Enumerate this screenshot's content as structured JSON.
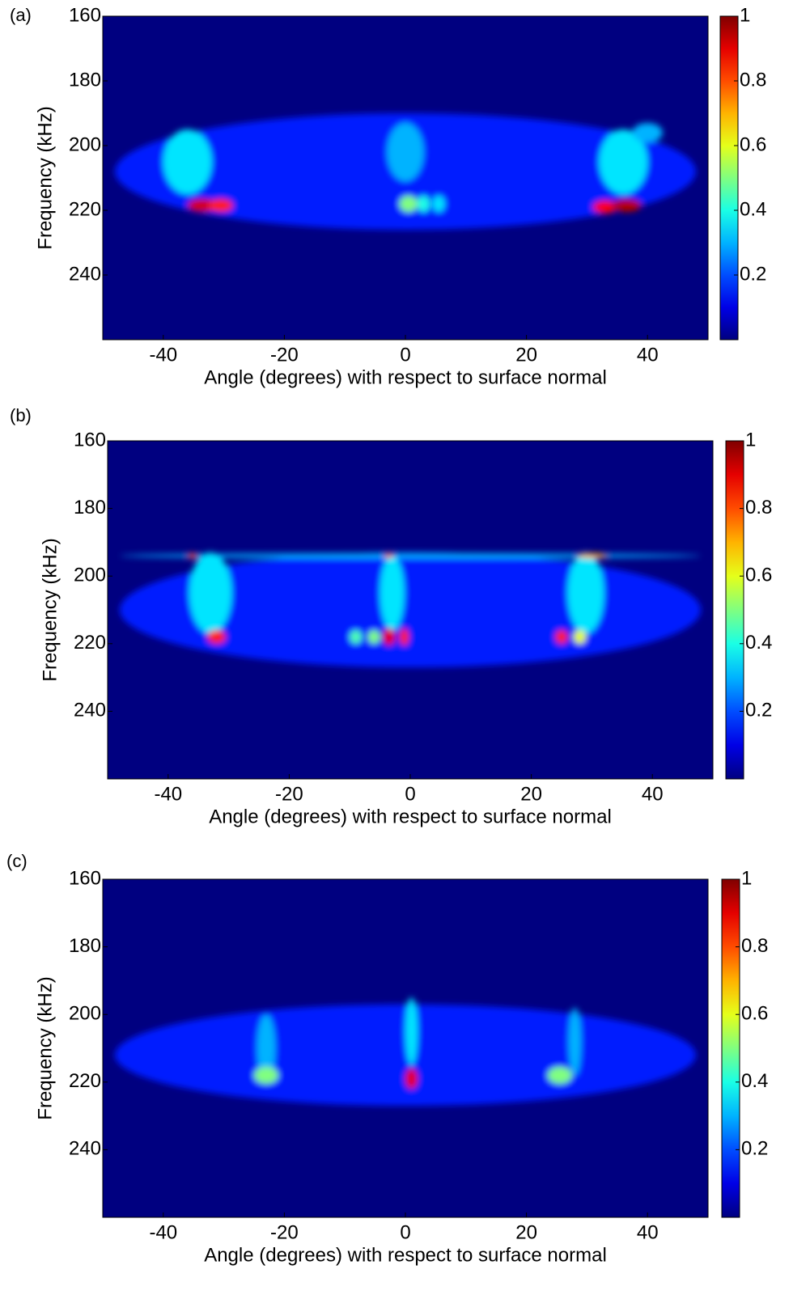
{
  "chart_data": [
    {
      "type": "heatmap",
      "label": "(a)",
      "x_label": "Angle (degrees) with respect to surface normal",
      "y_label": "Frequency (kHz)",
      "xlim": [
        -50,
        50
      ],
      "xticks": [
        -40,
        -20,
        0,
        20,
        40
      ],
      "ylim": [
        260,
        160
      ],
      "yticks": [
        160,
        180,
        200,
        220,
        240
      ],
      "y_inverted": true,
      "zlim": [
        0,
        1
      ],
      "colorbar_ticks": [
        0.2,
        0.4,
        0.6,
        0.8,
        1
      ],
      "colormap": "jet",
      "spots": [
        {
          "x": 0,
          "y": 208,
          "value": 0.15,
          "width": 96,
          "height": 36
        },
        {
          "x": -36,
          "y": 205,
          "value": 0.35,
          "width": 8,
          "height": 20
        },
        {
          "x": -33.5,
          "y": 218.5,
          "value": 0.92,
          "width": 5,
          "height": 4
        },
        {
          "x": -30.5,
          "y": 218.5,
          "value": 0.85,
          "width": 4,
          "height": 4
        },
        {
          "x": 0,
          "y": 202,
          "value": 0.3,
          "width": 6,
          "height": 18
        },
        {
          "x": 0.5,
          "y": 218,
          "value": 0.5,
          "width": 3,
          "height": 5
        },
        {
          "x": 3,
          "y": 218,
          "value": 0.4,
          "width": 2,
          "height": 5
        },
        {
          "x": 5.5,
          "y": 218,
          "value": 0.35,
          "width": 2,
          "height": 5
        },
        {
          "x": 36,
          "y": 205,
          "value": 0.35,
          "width": 8,
          "height": 20
        },
        {
          "x": 33,
          "y": 219,
          "value": 0.88,
          "width": 4,
          "height": 4
        },
        {
          "x": 36.5,
          "y": 218.5,
          "value": 0.95,
          "width": 5,
          "height": 4
        },
        {
          "x": 40,
          "y": 196,
          "value": 0.3,
          "width": 5,
          "height": 6
        }
      ]
    },
    {
      "type": "heatmap",
      "label": "(b)",
      "x_label": "Angle (degrees) with respect to surface normal",
      "y_label": "Frequency (kHz)",
      "xlim": [
        -50,
        50
      ],
      "xticks": [
        -40,
        -20,
        0,
        20,
        40
      ],
      "ylim": [
        260,
        160
      ],
      "yticks": [
        160,
        180,
        200,
        220,
        240
      ],
      "y_inverted": true,
      "zlim": [
        0,
        1
      ],
      "colorbar_ticks": [
        0.2,
        0.4,
        0.6,
        0.8,
        1
      ],
      "colormap": "jet",
      "spots": [
        {
          "x": 0,
          "y": 210,
          "value": 0.15,
          "width": 96,
          "height": 34
        },
        {
          "x": 0,
          "y": 194,
          "value": 0.3,
          "width": 96,
          "height": 1.5
        },
        {
          "x": -33,
          "y": 205,
          "value": 0.35,
          "width": 7,
          "height": 24
        },
        {
          "x": -36,
          "y": 194,
          "value": 0.8,
          "width": 1.5,
          "height": 1.5
        },
        {
          "x": -32,
          "y": 218,
          "value": 0.85,
          "width": 3,
          "height": 4
        },
        {
          "x": -3,
          "y": 205,
          "value": 0.35,
          "width": 4,
          "height": 22
        },
        {
          "x": -3.5,
          "y": 194,
          "value": 0.75,
          "width": 1.5,
          "height": 1.5
        },
        {
          "x": -3.5,
          "y": 218,
          "value": 0.9,
          "width": 2,
          "height": 5
        },
        {
          "x": -1,
          "y": 218,
          "value": 0.85,
          "width": 1.5,
          "height": 5
        },
        {
          "x": -9,
          "y": 218,
          "value": 0.45,
          "width": 2,
          "height": 4
        },
        {
          "x": -6,
          "y": 218,
          "value": 0.5,
          "width": 2,
          "height": 4
        },
        {
          "x": 29,
          "y": 205,
          "value": 0.35,
          "width": 6,
          "height": 24
        },
        {
          "x": 30,
          "y": 194,
          "value": 0.7,
          "width": 5,
          "height": 1.5
        },
        {
          "x": 25,
          "y": 218,
          "value": 0.85,
          "width": 2,
          "height": 4
        },
        {
          "x": 28,
          "y": 218,
          "value": 0.6,
          "width": 2,
          "height": 4
        }
      ]
    },
    {
      "type": "heatmap",
      "label": "(c)",
      "x_label": "Angle (degrees) with respect to surface normal",
      "y_label": "Frequency (kHz)",
      "xlim": [
        -50,
        50
      ],
      "xticks": [
        -40,
        -20,
        0,
        20,
        40
      ],
      "ylim": [
        260,
        160
      ],
      "yticks": [
        160,
        180,
        200,
        220,
        240
      ],
      "y_inverted": true,
      "zlim": [
        0,
        1
      ],
      "colorbar_ticks": [
        0.2,
        0.4,
        0.6,
        0.8,
        1
      ],
      "colormap": "jet",
      "spots": [
        {
          "x": 0,
          "y": 212,
          "value": 0.15,
          "width": 96,
          "height": 30
        },
        {
          "x": -23,
          "y": 210,
          "value": 0.3,
          "width": 3,
          "height": 20
        },
        {
          "x": -23,
          "y": 218,
          "value": 0.5,
          "width": 4,
          "height": 5
        },
        {
          "x": 1,
          "y": 205,
          "value": 0.35,
          "width": 2,
          "height": 20
        },
        {
          "x": 1,
          "y": 219,
          "value": 0.9,
          "width": 2,
          "height": 6
        },
        {
          "x": 28,
          "y": 208,
          "value": 0.3,
          "width": 2,
          "height": 20
        },
        {
          "x": 25.5,
          "y": 218,
          "value": 0.5,
          "width": 4,
          "height": 5
        }
      ]
    }
  ]
}
